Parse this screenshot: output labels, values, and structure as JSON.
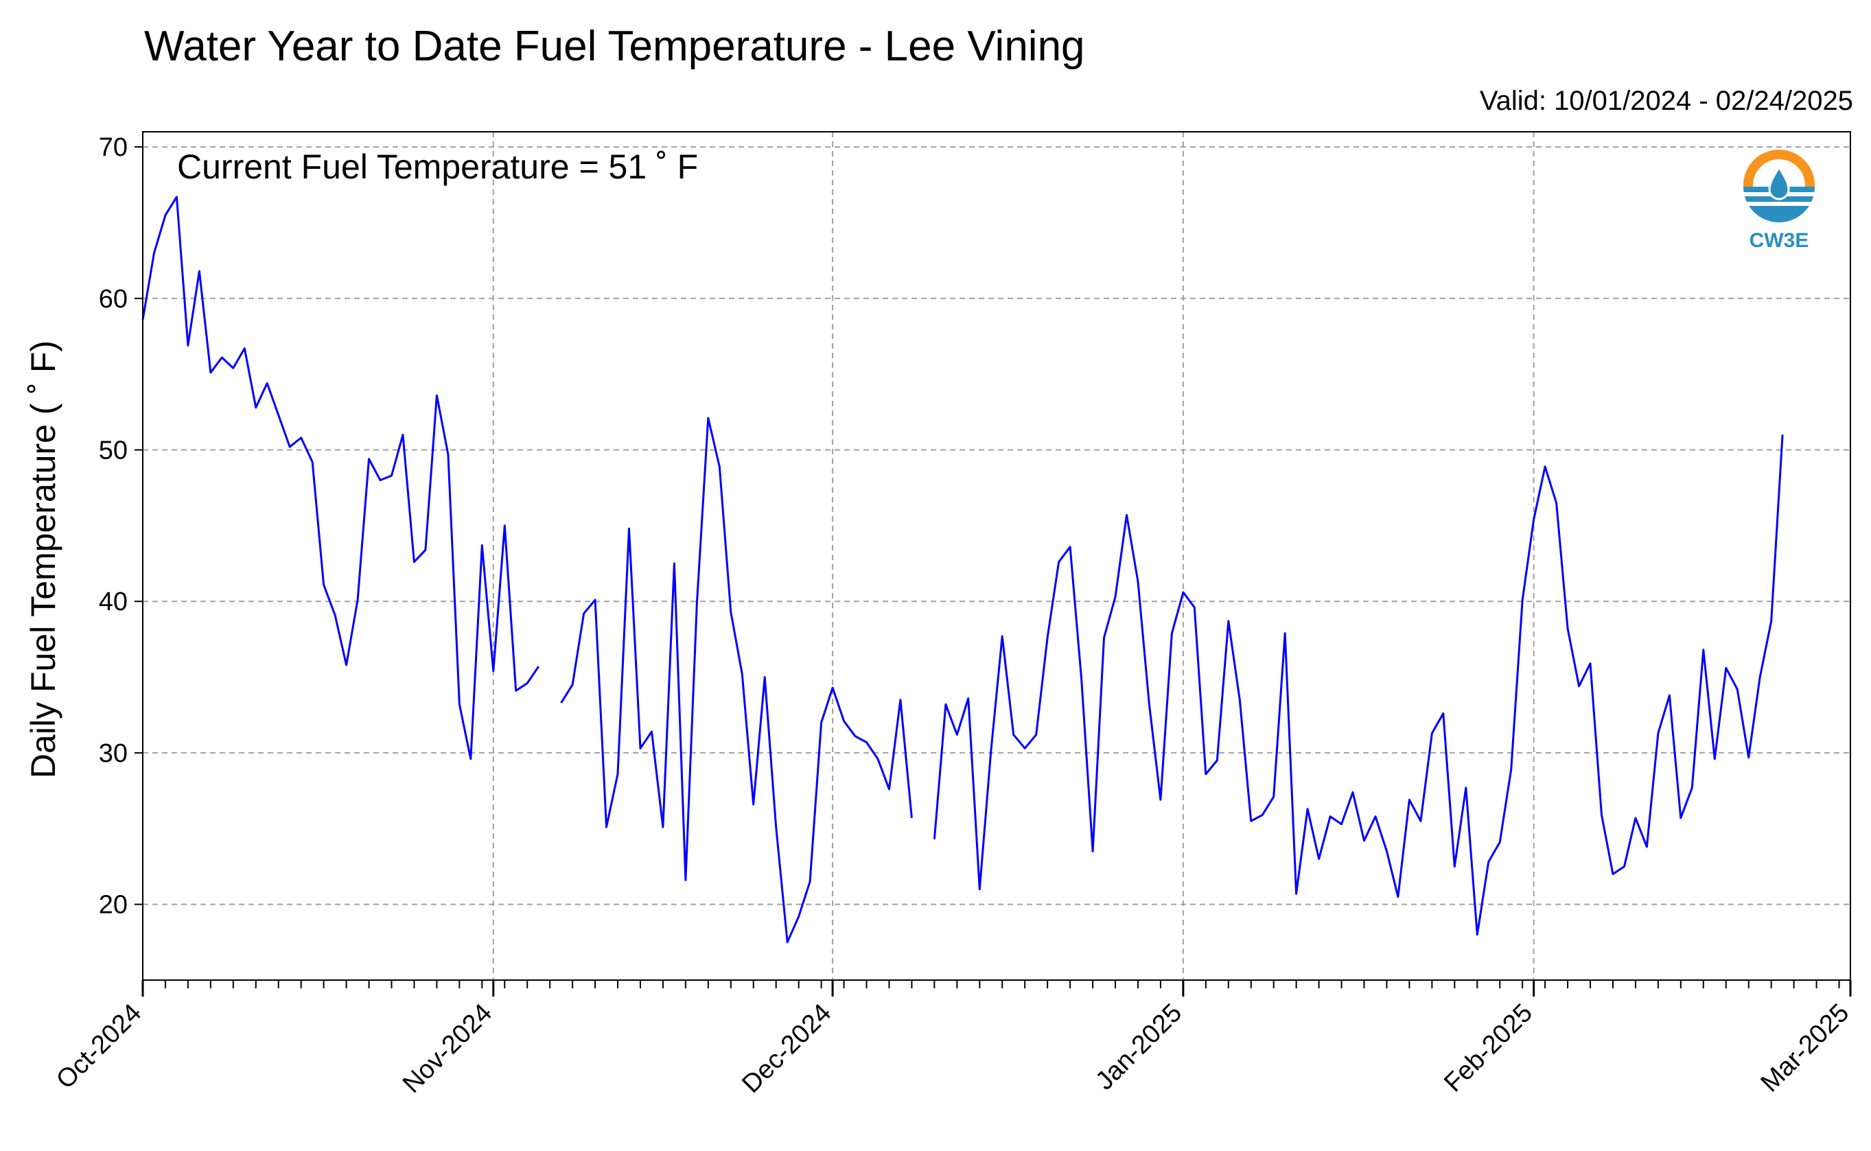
{
  "chart_data": {
    "type": "line",
    "title": "Water Year to Date Fuel Temperature - Lee Vining",
    "subtitle": "Valid: 10/01/2024 - 02/24/2025",
    "ylabel": "Daily Fuel Temperature ( ˚ F)",
    "xlabel": "",
    "annotation": "Current Fuel Temperature = 51  ˚ F",
    "logo_text": "CW3E",
    "ylim": [
      15,
      71
    ],
    "xlim": [
      "2024-10-01",
      "2025-03-01"
    ],
    "yticks": [
      20,
      30,
      40,
      50,
      60,
      70
    ],
    "xticks": [
      {
        "date": "2024-10-01",
        "label": "Oct-2024"
      },
      {
        "date": "2024-11-01",
        "label": "Nov-2024"
      },
      {
        "date": "2024-12-01",
        "label": "Dec-2024"
      },
      {
        "date": "2025-01-01",
        "label": "Jan-2025"
      },
      {
        "date": "2025-02-01",
        "label": "Feb-2025"
      },
      {
        "date": "2025-03-01",
        "label": "Mar-2025"
      }
    ],
    "grid": true,
    "line_color": "#0000ff",
    "series": [
      {
        "start_date": "2024-10-01",
        "values": [
          58.6,
          63.0,
          65.5,
          66.7,
          56.9,
          61.8,
          55.1,
          56.1,
          55.4,
          56.7,
          52.8,
          54.4,
          52.3,
          50.2,
          50.8,
          49.2,
          41.1,
          39.1,
          35.8,
          40.1,
          49.4,
          48.0,
          48.3,
          51.0,
          42.6,
          43.4,
          53.6,
          49.7,
          33.2,
          29.6,
          43.7,
          35.4,
          45.0,
          34.1,
          34.6,
          35.7,
          null,
          33.3,
          34.5,
          39.2,
          40.1,
          25.1,
          28.6,
          44.8,
          30.3,
          31.4,
          25.1,
          42.5,
          21.6,
          39.9,
          52.1,
          48.9,
          39.3,
          35.2,
          26.6,
          35.0,
          25.1,
          17.5,
          19.2,
          21.5,
          32.0,
          34.3,
          32.1,
          31.1,
          30.7,
          29.6,
          27.6,
          33.5,
          25.7,
          null,
          24.3,
          33.2,
          31.2,
          33.6,
          21.0,
          30.1,
          37.7,
          31.2,
          30.3,
          31.2,
          37.6,
          42.6,
          43.6,
          34.9,
          23.5,
          37.6,
          40.3,
          45.7,
          41.3,
          33.2,
          26.9,
          37.9,
          40.6,
          39.6,
          28.6,
          29.5,
          38.7,
          33.5,
          25.5,
          25.9,
          27.1,
          37.9,
          20.7,
          26.3,
          23.0,
          25.8,
          25.3,
          27.4,
          24.2,
          25.8,
          23.5,
          20.5,
          26.9,
          25.5,
          31.3,
          32.6,
          22.5,
          27.7,
          18.0,
          22.8,
          24.1,
          28.9,
          40.1,
          45.4,
          48.9,
          46.5,
          38.2,
          34.4,
          35.9,
          25.9,
          22.0,
          22.5,
          25.7,
          23.8,
          31.3,
          33.8,
          25.7,
          27.7,
          36.8,
          29.6,
          35.6,
          34.2,
          29.7,
          35.0,
          38.7,
          51.0
        ]
      }
    ]
  }
}
